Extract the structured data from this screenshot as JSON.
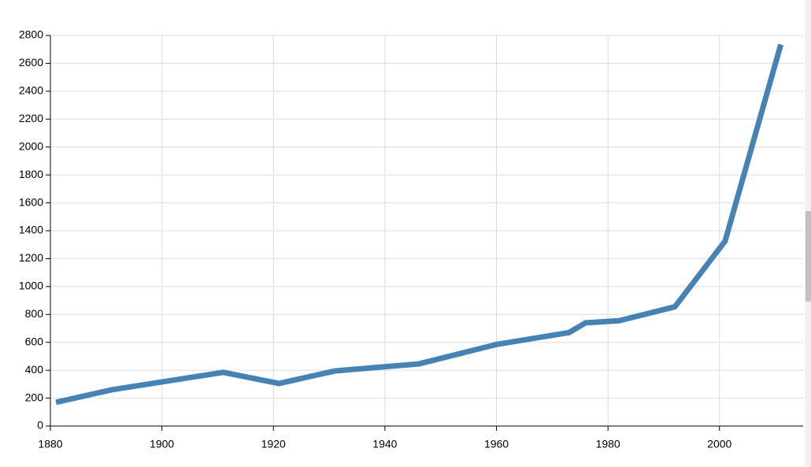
{
  "chart_data": {
    "type": "line",
    "x": [
      1881,
      1891,
      1911,
      1921,
      1931,
      1946,
      1960,
      1973,
      1976,
      1982,
      1992,
      2001,
      2011
    ],
    "series": [
      {
        "color": "#4682b4",
        "values": [
          170,
          260,
          385,
          305,
          395,
          445,
          585,
          670,
          740,
          755,
          855,
          1325,
          2735
        ]
      }
    ],
    "xlim": [
      1880,
      2015
    ],
    "xticks": [
      1880,
      1900,
      1920,
      1940,
      1960,
      1980,
      2000
    ],
    "ylim": [
      0,
      2800
    ],
    "yticks": [
      0,
      200,
      400,
      600,
      800,
      1000,
      1200,
      1400,
      1600,
      1800,
      2000,
      2200,
      2400,
      2600,
      2800
    ],
    "grid": true
  }
}
